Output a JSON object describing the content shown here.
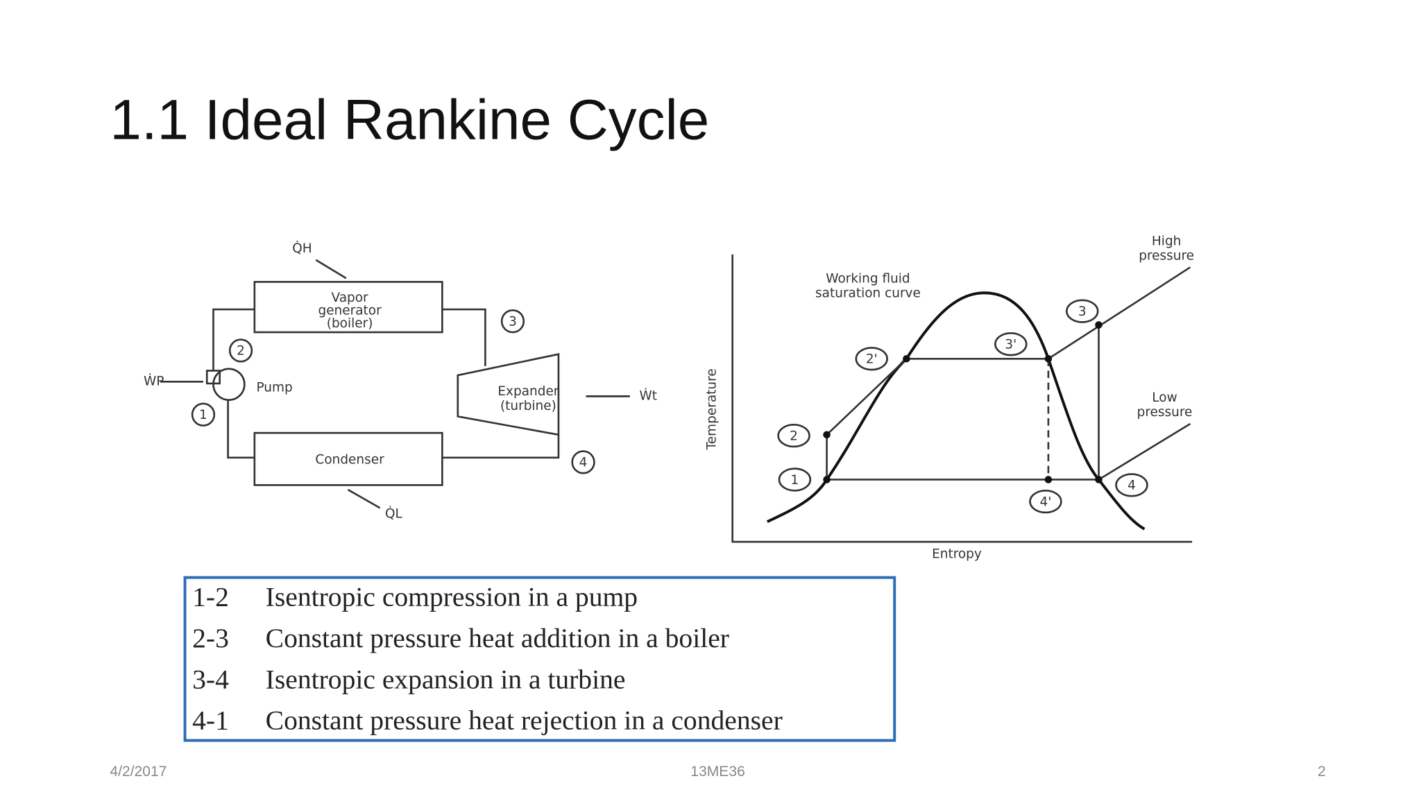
{
  "title": "1.1 Ideal Rankine Cycle",
  "cycle_diagram": {
    "boiler": [
      "Vapor",
      "generator",
      "(boiler)"
    ],
    "pump": "Pump",
    "turbine": [
      "Expander",
      "(turbine)"
    ],
    "condenser": "Condenser",
    "states": [
      "1",
      "2",
      "3",
      "4"
    ],
    "heat_in": "Q̇H",
    "heat_out": "Q̇L",
    "work_in": "ẆP",
    "work_out": "Ẇt"
  },
  "ts_diagram": {
    "curve_label": [
      "Working fluid",
      "saturation curve"
    ],
    "high_pressure": [
      "High",
      "pressure"
    ],
    "low_pressure": [
      "Low",
      "pressure"
    ],
    "y_axis": "Temperature",
    "x_axis": "Entropy",
    "states": [
      "1",
      "2",
      "2'",
      "3'",
      "3",
      "4",
      "4'"
    ]
  },
  "table": {
    "rows": [
      [
        "1-2",
        "Isentropic compression in a pump"
      ],
      [
        "2-3",
        "Constant pressure heat addition in a boiler"
      ],
      [
        "3-4",
        "Isentropic expansion in a turbine"
      ],
      [
        "4-1",
        "Constant pressure heat rejection in a condenser"
      ]
    ]
  },
  "footer": {
    "date": "4/2/2017",
    "code": "13ME36",
    "page": "2"
  }
}
